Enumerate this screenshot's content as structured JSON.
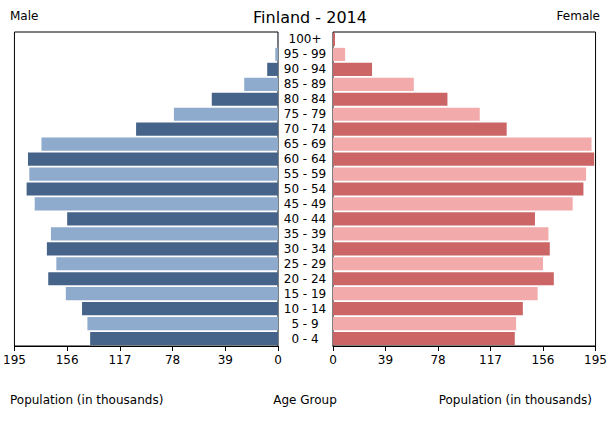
{
  "chart_data": {
    "type": "bar",
    "title": "Finland - 2014",
    "orientation": "horizontal",
    "grid": false,
    "xlabel": "Population (in thousands)",
    "ylabel": "Age Group",
    "categories": [
      "0 - 4",
      "5 - 9",
      "10 - 14",
      "15 - 19",
      "20 - 24",
      "25 - 29",
      "30 - 34",
      "35 - 39",
      "40 - 44",
      "45 - 49",
      "50 - 54",
      "55 - 59",
      "60 - 64",
      "65 - 69",
      "70 - 74",
      "75 - 79",
      "80 - 84",
      "85 - 89",
      "90 - 94",
      "95 - 99",
      "100+"
    ],
    "xlim": [
      0,
      195
    ],
    "xticks": [
      0,
      39,
      78,
      117,
      156,
      195
    ],
    "series": [
      {
        "name": "Male",
        "colors": [
          "#46648a",
          "#8eaacc",
          "#46648a",
          "#8eaacc",
          "#46648a",
          "#8eaacc",
          "#46648a",
          "#8eaacc",
          "#46648a",
          "#8eaacc",
          "#46648a",
          "#8eaacc",
          "#46648a",
          "#8eaacc",
          "#46648a",
          "#8eaacc",
          "#46648a",
          "#8eaacc",
          "#46648a",
          "#8eaacc",
          "#46648a"
        ],
        "values": [
          139,
          141,
          145,
          157,
          170,
          164,
          171,
          168,
          156,
          180,
          186,
          184,
          185,
          175,
          105,
          77,
          49,
          25,
          8,
          2,
          0.2
        ]
      },
      {
        "name": "Female",
        "colors": [
          "#cc6666",
          "#f2aaaa",
          "#cc6666",
          "#f2aaaa",
          "#cc6666",
          "#f2aaaa",
          "#cc6666",
          "#f2aaaa",
          "#cc6666",
          "#f2aaaa",
          "#cc6666",
          "#f2aaaa",
          "#cc6666",
          "#f2aaaa",
          "#cc6666",
          "#f2aaaa",
          "#cc6666",
          "#f2aaaa",
          "#cc6666",
          "#f2aaaa",
          "#cc6666"
        ],
        "values": [
          135,
          136,
          141,
          152,
          164,
          156,
          161,
          160,
          150,
          178,
          186,
          188,
          194,
          192,
          129,
          109,
          85,
          60,
          29,
          9,
          1.5
        ]
      }
    ]
  }
}
